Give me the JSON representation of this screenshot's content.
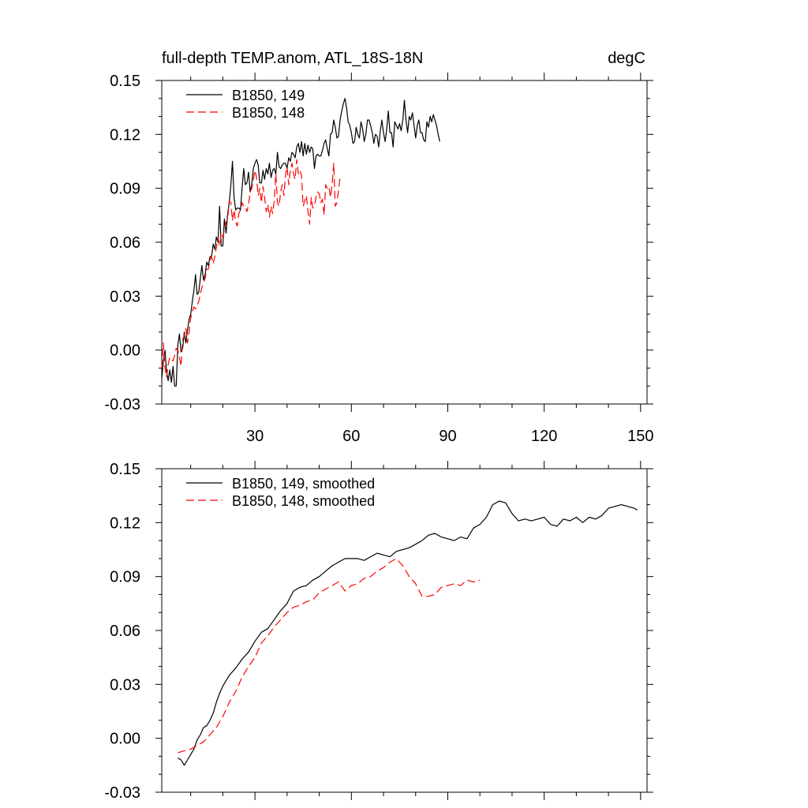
{
  "chart_data": [
    {
      "type": "line",
      "title": "full-depth TEMP.anom, ATL_18S-18N",
      "units_label": "degC",
      "xlim": [
        1,
        152
      ],
      "ylim": [
        -0.03,
        0.15
      ],
      "x_ticks": [
        30,
        60,
        90,
        120,
        150
      ],
      "x_tick_labels": [
        "30",
        "60",
        "90",
        "120",
        "150"
      ],
      "y_ticks": [
        -0.03,
        0.0,
        0.03,
        0.06,
        0.09,
        0.12,
        0.15
      ],
      "y_tick_labels": [
        "-0.03",
        "0.00",
        "0.03",
        "0.06",
        "0.09",
        "0.12",
        "0.15"
      ],
      "legend_position": "top-left",
      "series": [
        {
          "name": "B1850, 149",
          "color": "#000000",
          "dash": "solid",
          "x_start": 1,
          "values": [
            -0.016,
            -0.006,
            0.0,
            -0.012,
            -0.017,
            -0.011,
            -0.018,
            -0.009,
            -0.02,
            -0.02,
            0.003,
            0.009,
            -0.001,
            0.001,
            0.01,
            0.004,
            0.011,
            0.017,
            0.02,
            0.027,
            0.033,
            0.042,
            0.031,
            0.032,
            0.04,
            0.047,
            0.039,
            0.042,
            0.049,
            0.047,
            0.052,
            0.052,
            0.059,
            0.056,
            0.063,
            0.06,
            0.08,
            0.058,
            0.058,
            0.073,
            0.065,
            0.076,
            0.082,
            0.092,
            0.105,
            0.085,
            0.078,
            0.079,
            0.079,
            0.078,
            0.09,
            0.101,
            0.092,
            0.093,
            0.099,
            0.088,
            0.092,
            0.101,
            0.104,
            0.106,
            0.103,
            0.093,
            0.093,
            0.1,
            0.095,
            0.101,
            0.098,
            0.104,
            0.096,
            0.1,
            0.101,
            0.098,
            0.11,
            0.102,
            0.101,
            0.103,
            0.104,
            0.104,
            0.101,
            0.107,
            0.105,
            0.11,
            0.109,
            0.107,
            0.113,
            0.115,
            0.11,
            0.116,
            0.108,
            0.115,
            0.109,
            0.114,
            0.11,
            0.113,
            0.112,
            0.101,
            0.108,
            0.109,
            0.108,
            0.108,
            0.111,
            0.115,
            0.117,
            0.112,
            0.108,
            0.12,
            0.121,
            0.128,
            0.124,
            0.118,
            0.119,
            0.128,
            0.133,
            0.137,
            0.14,
            0.135,
            0.127,
            0.125,
            0.121,
            0.115,
            0.116,
            0.124,
            0.12,
            0.118,
            0.127,
            0.123,
            0.116,
            0.12,
            0.128,
            0.128,
            0.125,
            0.121,
            0.115,
            0.12,
            0.119,
            0.113,
            0.122,
            0.128,
            0.121,
            0.116,
            0.123,
            0.133,
            0.121,
            0.121,
            0.113,
            0.127,
            0.125,
            0.123,
            0.126,
            0.122,
            0.128,
            0.139,
            0.128,
            0.121,
            0.13,
            0.128,
            0.132,
            0.125,
            0.118,
            0.125,
            0.128,
            0.121,
            0.121,
            0.117,
            0.116,
            0.127,
            0.124,
            0.13,
            0.127,
            0.131,
            0.128,
            0.125,
            0.12,
            0.116
          ]
        },
        {
          "name": "B1850, 148",
          "color": "#ff0000",
          "dash": "dashed",
          "x_start": 1,
          "values": [
            -0.01,
            0.004,
            -0.01,
            -0.015,
            -0.008,
            -0.004,
            -0.005,
            -0.006,
            -0.003,
            0.001,
            0.0,
            -0.004,
            -0.009,
            0.006,
            0.008,
            0.012,
            0.004,
            0.01,
            0.018,
            0.021,
            0.024,
            0.023,
            0.025,
            0.027,
            0.031,
            0.035,
            0.037,
            0.04,
            0.045,
            0.045,
            0.05,
            0.052,
            0.048,
            0.052,
            0.057,
            0.062,
            0.058,
            0.065,
            0.063,
            0.067,
            0.071,
            0.073,
            0.083,
            0.082,
            0.072,
            0.078,
            0.071,
            0.069,
            0.076,
            0.078,
            0.082,
            0.08,
            0.08,
            0.077,
            0.081,
            0.088,
            0.09,
            0.095,
            0.1,
            0.096,
            0.086,
            0.09,
            0.082,
            0.091,
            0.085,
            0.077,
            0.081,
            0.074,
            0.08,
            0.076,
            0.083,
            0.098,
            0.082,
            0.08,
            0.088,
            0.092,
            0.086,
            0.097,
            0.102,
            0.092,
            0.1,
            0.104,
            0.098,
            0.095,
            0.106,
            0.098,
            0.1,
            0.097,
            0.08,
            0.083,
            0.086,
            0.077,
            0.07,
            0.085,
            0.079,
            0.08,
            0.085,
            0.088,
            0.087,
            0.082,
            0.084,
            0.075,
            0.092,
            0.09,
            0.091,
            0.085,
            0.092,
            0.104,
            0.08,
            0.082,
            0.089,
            0.096
          ]
        }
      ]
    },
    {
      "type": "line",
      "title": "",
      "xlim": [
        1,
        152
      ],
      "ylim": [
        -0.03,
        0.15
      ],
      "x_ticks": [
        30,
        60,
        90,
        120,
        150
      ],
      "y_ticks": [
        -0.03,
        0.0,
        0.03,
        0.06,
        0.09,
        0.12,
        0.15
      ],
      "y_tick_labels": [
        "-0.03",
        "0.00",
        "0.03",
        "0.06",
        "0.09",
        "0.12",
        "0.15"
      ],
      "legend_position": "top-left",
      "series": [
        {
          "name": "B1850, 149, smoothed",
          "color": "#000000",
          "dash": "solid",
          "x": [
            6,
            7,
            8,
            9,
            10,
            11,
            12,
            13,
            14,
            15,
            16,
            17,
            18,
            19,
            20,
            22,
            24,
            26,
            28,
            30,
            32,
            34,
            36,
            38,
            40,
            42,
            43,
            44,
            46,
            48,
            50,
            52,
            54,
            56,
            58,
            60,
            62,
            64,
            66,
            68,
            70,
            72,
            74,
            76,
            78,
            80,
            82,
            84,
            86,
            88,
            90,
            92,
            94,
            96,
            98,
            100,
            102,
            104,
            106,
            108,
            110,
            112,
            114,
            116,
            118,
            120,
            122,
            124,
            126,
            128,
            130,
            132,
            134,
            136,
            138,
            140,
            142,
            144,
            146,
            148,
            149
          ],
          "values": [
            -0.011,
            -0.012,
            -0.015,
            -0.012,
            -0.009,
            -0.006,
            -0.001,
            0.002,
            0.006,
            0.007,
            0.01,
            0.014,
            0.02,
            0.025,
            0.029,
            0.035,
            0.039,
            0.044,
            0.048,
            0.054,
            0.059,
            0.061,
            0.066,
            0.071,
            0.075,
            0.082,
            0.083,
            0.084,
            0.085,
            0.088,
            0.09,
            0.093,
            0.096,
            0.098,
            0.1,
            0.1,
            0.1,
            0.099,
            0.101,
            0.103,
            0.102,
            0.101,
            0.104,
            0.105,
            0.106,
            0.108,
            0.11,
            0.113,
            0.114,
            0.112,
            0.111,
            0.11,
            0.112,
            0.111,
            0.117,
            0.119,
            0.123,
            0.13,
            0.132,
            0.131,
            0.125,
            0.121,
            0.122,
            0.121,
            0.122,
            0.123,
            0.119,
            0.118,
            0.122,
            0.121,
            0.123,
            0.12,
            0.123,
            0.122,
            0.124,
            0.128,
            0.129,
            0.13,
            0.129,
            0.128,
            0.127
          ]
        },
        {
          "name": "B1850, 148, smoothed",
          "color": "#ff0000",
          "dash": "dashed",
          "x": [
            6,
            8,
            10,
            12,
            14,
            16,
            18,
            20,
            22,
            24,
            26,
            28,
            30,
            32,
            34,
            36,
            38,
            40,
            42,
            44,
            46,
            48,
            50,
            52,
            54,
            56,
            58,
            60,
            62,
            64,
            66,
            68,
            70,
            72,
            74,
            76,
            78,
            80,
            82,
            84,
            86,
            88,
            90,
            92,
            94,
            96,
            98,
            100
          ],
          "values": [
            -0.008,
            -0.007,
            -0.006,
            -0.004,
            -0.002,
            0.002,
            0.006,
            0.012,
            0.02,
            0.026,
            0.034,
            0.04,
            0.045,
            0.053,
            0.057,
            0.062,
            0.066,
            0.07,
            0.073,
            0.074,
            0.076,
            0.077,
            0.081,
            0.083,
            0.085,
            0.087,
            0.082,
            0.085,
            0.086,
            0.089,
            0.09,
            0.093,
            0.095,
            0.098,
            0.1,
            0.096,
            0.09,
            0.086,
            0.079,
            0.079,
            0.08,
            0.084,
            0.085,
            0.086,
            0.085,
            0.088,
            0.087,
            0.088
          ]
        }
      ]
    }
  ]
}
